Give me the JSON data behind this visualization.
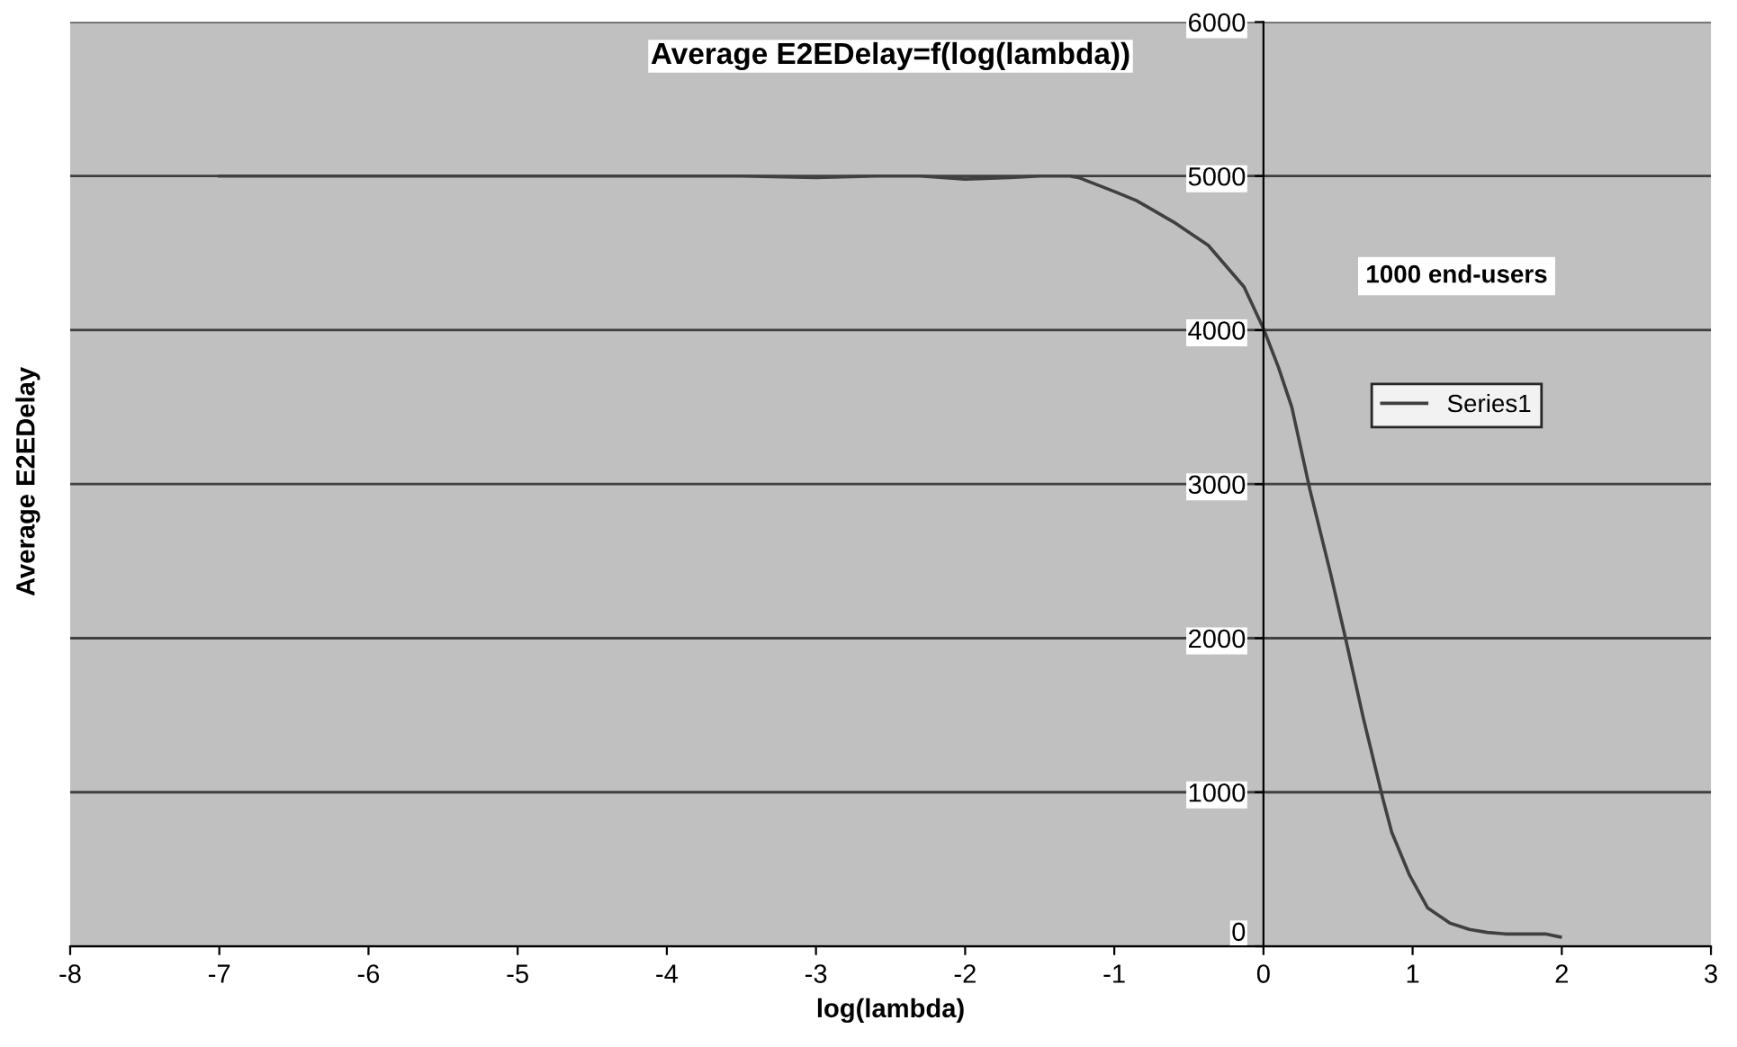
{
  "chart_data": {
    "type": "line",
    "title": "Average E2EDelay=f(log(lambda))",
    "xlabel": "log(lambda)",
    "ylabel": "Average E2EDelay",
    "annotations": [
      "1000 end-users"
    ],
    "series": [
      {
        "name": "Series1",
        "color": "#404040",
        "x": [
          -7,
          -6,
          -5,
          -4,
          -3.5,
          -3,
          -2.6,
          -2.3,
          -2,
          -1.7,
          -1.5,
          -1.3,
          -1.24,
          -1,
          -0.85,
          -0.6,
          -0.37,
          -0.13,
          0,
          0.1,
          0.19,
          0.31,
          0.45,
          0.55,
          0.67,
          0.8,
          0.86,
          0.98,
          1.1,
          1.25,
          1.38,
          1.5,
          1.62,
          1.75,
          1.89,
          1.99
        ],
        "values": [
          5000,
          5000,
          5000,
          5000,
          5000,
          4990,
          5000,
          5000,
          4980,
          4990,
          5000,
          5000,
          4990,
          4900,
          4840,
          4700,
          4550,
          4280,
          4010,
          3760,
          3500,
          2970,
          2420,
          2000,
          1480,
          960,
          740,
          460,
          250,
          150,
          110,
          90,
          80,
          80,
          80,
          60
        ]
      }
    ],
    "xlim": [
      -8,
      3
    ],
    "xticks": [
      -8,
      -7,
      -6,
      -5,
      -4,
      -3,
      -2,
      -1,
      0,
      1,
      2,
      3
    ],
    "ylim": [
      0,
      6000
    ],
    "yticks": [
      0,
      1000,
      2000,
      3000,
      4000,
      5000,
      6000
    ],
    "grid": "y",
    "legend": "right",
    "marker": "none",
    "line_style": "solid"
  }
}
